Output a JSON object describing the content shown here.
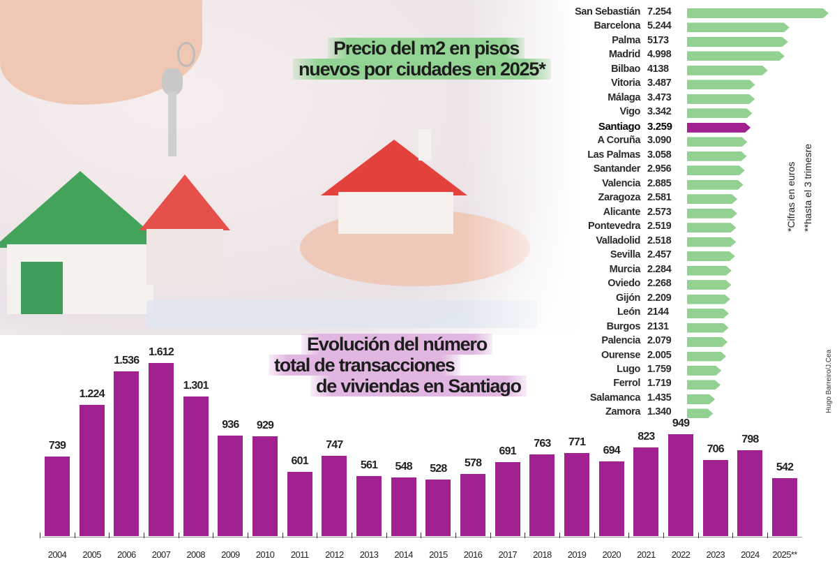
{
  "colors": {
    "green_bar": "#92d191",
    "highlight_bar": "#a0218f",
    "title1_highlight": "#93d394",
    "title2_highlight": "#e1b6e0"
  },
  "chart_data": [
    {
      "type": "bar",
      "orientation": "horizontal",
      "title": "Precio del m2 en pisos nuevos por ciudades en 2025*",
      "title_lines": [
        "Precio del m2 en pisos",
        "nuevos por ciudades en 2025*"
      ],
      "highlighted": "Santiago",
      "categories": [
        "San Sebastián",
        "Barcelona",
        "Palma",
        "Madrid",
        "Bilbao",
        "Vitoria",
        "Málaga",
        "Vigo",
        "Santiago",
        "A Coruña",
        "Las Palmas",
        "Santander",
        "Valencia",
        "Zaragoza",
        "Alicante",
        "Pontevedra",
        "Valladolid",
        "Sevilla",
        "Murcia",
        "Oviedo",
        "Gijón",
        "León",
        "Burgos",
        "Palencia",
        "Ourense",
        "Lugo",
        "Ferrol",
        "Salamanca",
        "Zamora"
      ],
      "value_labels": [
        "7.254",
        "5.244",
        "5173",
        "4.998",
        "4138",
        "3.487",
        "3.473",
        "3.342",
        "3.259",
        "3.090",
        "3.058",
        "2.956",
        "2.885",
        "2.581",
        "2.573",
        "2.519",
        "2.518",
        "2.457",
        "2.284",
        "2.268",
        "2.209",
        "2144",
        "2131",
        "2.079",
        "2.005",
        "1.759",
        "1.719",
        "1.435",
        "1.340"
      ],
      "values": [
        7254,
        5244,
        5173,
        4998,
        4138,
        3487,
        3473,
        3342,
        3259,
        3090,
        3058,
        2956,
        2885,
        2581,
        2573,
        2519,
        2518,
        2457,
        2284,
        2268,
        2209,
        2144,
        2131,
        2079,
        2005,
        1759,
        1719,
        1435,
        1340
      ],
      "notes": [
        "*Cifras en euros",
        "**hasta el 3 trimesre"
      ]
    },
    {
      "type": "bar",
      "title": "Evolución del número total de transacciones de viviendas en Santiago",
      "title_lines": [
        "Evolución del número",
        "total de transacciones",
        "de viviendas en Santiago"
      ],
      "categories": [
        "2004",
        "2005",
        "2006",
        "2007",
        "2008",
        "2009",
        "2010",
        "2011",
        "2012",
        "2013",
        "2014",
        "2015",
        "2016",
        "2017",
        "2018",
        "2019",
        "2020",
        "2021",
        "2022",
        "2023",
        "2024",
        "2025**"
      ],
      "value_labels": [
        "739",
        "1.224",
        "1.536",
        "1.612",
        "1.301",
        "936",
        "929",
        "601",
        "747",
        "561",
        "548",
        "528",
        "578",
        "691",
        "763",
        "771",
        "694",
        "823",
        "949",
        "706",
        "798",
        "542"
      ],
      "values": [
        739,
        1224,
        1536,
        1612,
        1301,
        936,
        929,
        601,
        747,
        561,
        548,
        528,
        578,
        691,
        763,
        771,
        694,
        823,
        949,
        706,
        798,
        542
      ],
      "ylim": [
        0,
        1612
      ]
    }
  ],
  "credit": "Hugo Barreiro/J.Cea"
}
